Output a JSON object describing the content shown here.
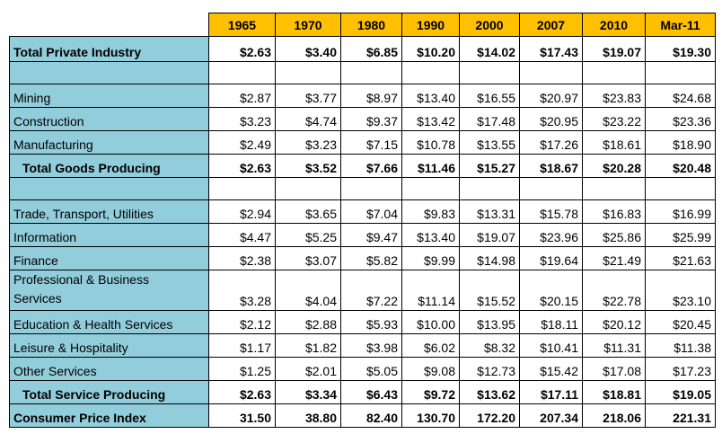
{
  "table": {
    "header": [
      "1965",
      "1970",
      "1980",
      "1990",
      "2000",
      "2007",
      "2010",
      "Mar-11"
    ],
    "groups": [
      [
        {
          "label": "Total Private Industry",
          "bold": true,
          "indent": false,
          "cells": [
            "$2.63",
            "$3.40",
            "$6.85",
            "$10.20",
            "$14.02",
            "$17.43",
            "$19.07",
            "$19.30"
          ]
        }
      ],
      [
        {
          "label": "Mining",
          "bold": false,
          "indent": false,
          "cells": [
            "$2.87",
            "$3.77",
            "$8.97",
            "$13.40",
            "$16.55",
            "$20.97",
            "$23.83",
            "$24.68"
          ]
        },
        {
          "label": "Construction",
          "bold": false,
          "indent": false,
          "cells": [
            "$3.23",
            "$4.74",
            "$9.37",
            "$13.42",
            "$17.48",
            "$20.95",
            "$23.22",
            "$23.36"
          ]
        },
        {
          "label": "Manufacturing",
          "bold": false,
          "indent": false,
          "cells": [
            "$2.49",
            "$3.23",
            "$7.15",
            "$10.78",
            "$13.55",
            "$17.26",
            "$18.61",
            "$18.90"
          ]
        },
        {
          "label": "Total Goods Producing",
          "bold": true,
          "indent": true,
          "cells": [
            "$2.63",
            "$3.52",
            "$7.66",
            "$11.46",
            "$15.27",
            "$18.67",
            "$20.28",
            "$20.48"
          ]
        }
      ],
      [
        {
          "label": "Trade, Transport, Utilities",
          "bold": false,
          "indent": false,
          "cells": [
            "$2.94",
            "$3.65",
            "$7.04",
            "$9.83",
            "$13.31",
            "$15.78",
            "$16.83",
            "$16.99"
          ]
        },
        {
          "label": "Information",
          "bold": false,
          "indent": false,
          "cells": [
            "$4.47",
            "$5.25",
            "$9.47",
            "$13.40",
            "$19.07",
            "$23.96",
            "$25.86",
            "$25.99"
          ]
        },
        {
          "label": "Finance",
          "bold": false,
          "indent": false,
          "cells": [
            "$2.38",
            "$3.07",
            "$5.82",
            "$9.99",
            "$14.98",
            "$19.64",
            "$21.49",
            "$21.63"
          ]
        },
        {
          "label": "Professional & Business Services",
          "bold": false,
          "indent": false,
          "cells": [
            "$3.28",
            "$4.04",
            "$7.22",
            "$11.14",
            "$15.52",
            "$20.15",
            "$22.78",
            "$23.10"
          ]
        },
        {
          "label": "Education & Health Services",
          "bold": false,
          "indent": false,
          "cells": [
            "$2.12",
            "$2.88",
            "$5.93",
            "$10.00",
            "$13.95",
            "$18.11",
            "$20.12",
            "$20.45"
          ]
        },
        {
          "label": "Leisure & Hospitality",
          "bold": false,
          "indent": false,
          "cells": [
            "$1.17",
            "$1.82",
            "$3.98",
            "$6.02",
            "$8.32",
            "$10.41",
            "$11.31",
            "$11.38"
          ]
        },
        {
          "label": "Other Services",
          "bold": false,
          "indent": false,
          "cells": [
            "$1.25",
            "$2.01",
            "$5.05",
            "$9.08",
            "$12.73",
            "$15.42",
            "$17.08",
            "$17.23"
          ]
        },
        {
          "label": "Total Service Producing",
          "bold": true,
          "indent": true,
          "cells": [
            "$2.63",
            "$3.34",
            "$6.43",
            "$9.72",
            "$13.62",
            "$17.11",
            "$18.81",
            "$19.05"
          ]
        },
        {
          "label": "Consumer Price Index",
          "bold": true,
          "indent": false,
          "cells": [
            "31.50",
            "38.80",
            "82.40",
            "130.70",
            "172.20",
            "207.34",
            "218.06",
            "221.31"
          ]
        }
      ]
    ]
  }
}
